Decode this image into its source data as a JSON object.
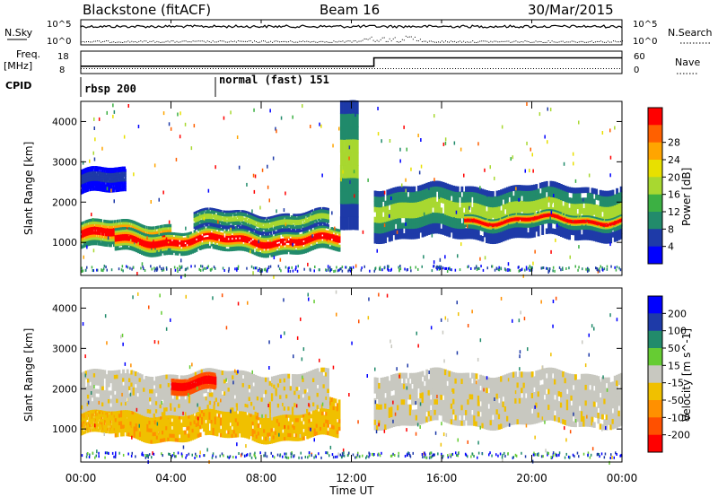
{
  "header": {
    "site": "Blackstone (fitACF)",
    "beam": "Beam 16",
    "date": "30/Mar/2015"
  },
  "left_labels": {
    "nsky": "N.Sky",
    "freq_line1": "Freq.",
    "freq_line2": "[MHz]",
    "cpid": "CPID"
  },
  "right_labels": {
    "nsearch": "N.Search",
    "nave": "Nave"
  },
  "colors": {
    "noise_line": "#000000",
    "plot_border": "#000000"
  },
  "chart_data": [
    {
      "type": "line",
      "title": "N.Sky / N.Search",
      "ylabel_left": "N.Sky",
      "ylabel_right": "N.Search",
      "yticks_left": [
        "10^5",
        "10^0"
      ],
      "yticks_right": [
        "10^5",
        "10^0"
      ],
      "xlim": [
        "00:00",
        "24:00"
      ]
    },
    {
      "type": "line",
      "title": "Frequency / Nave",
      "ylabel_left": "Freq. [MHz]",
      "ylabel_right": "Nave",
      "yticks_left": [
        "18",
        "8"
      ],
      "yticks_right": [
        "60",
        "0"
      ],
      "freq_mhz": [
        {
          "t": 0.0,
          "v": 11.3
        },
        {
          "t": 13.0,
          "v": 11.3
        },
        {
          "t": 13.0,
          "v": 15.0
        },
        {
          "t": 24.0,
          "v": 15.0
        }
      ],
      "nave_level": 0.2
    },
    {
      "type": "table",
      "title": "CPID",
      "segments": [
        {
          "start_hour": 0,
          "label": "rbsp 200"
        },
        {
          "start_hour": 6,
          "label": "normal (fast) 151"
        }
      ]
    },
    {
      "type": "heatmap",
      "title": "Power",
      "ylabel": "Slant Range [km]",
      "yticks": [
        1000,
        2000,
        3000,
        4000
      ],
      "ylim": [
        180,
        4500
      ],
      "colorbar_label": "Power [dB]",
      "colorbar_ticks": [
        4,
        8,
        12,
        16,
        20,
        24,
        28
      ],
      "colorbar_colors": [
        "#0000ff",
        "#1e3aa8",
        "#228b6b",
        "#3cb043",
        "#a8d830",
        "#e8e000",
        "#ffa500",
        "#ff6000",
        "#ff0000"
      ],
      "bands": [
        {
          "t0": 0.0,
          "t1": 4.0,
          "r0": 850,
          "r1": 1500,
          "intensity": "high"
        },
        {
          "t0": 1.5,
          "t1": 11.5,
          "r0": 750,
          "r1": 1300,
          "intensity": "high"
        },
        {
          "t0": 5.0,
          "t1": 11.0,
          "r0": 1300,
          "r1": 1750,
          "intensity": "medium"
        },
        {
          "t0": 0.0,
          "t1": 2.0,
          "r0": 2200,
          "r1": 2800,
          "intensity": "low"
        },
        {
          "t0": 11.5,
          "t1": 12.3,
          "r0": 1300,
          "r1": 4500,
          "intensity": "medium"
        },
        {
          "t0": 13.0,
          "t1": 24.0,
          "r0": 1100,
          "r1": 2400,
          "intensity": "medium"
        },
        {
          "t0": 17.0,
          "t1": 24.0,
          "r0": 1400,
          "r1": 1700,
          "intensity": "high"
        }
      ]
    },
    {
      "type": "heatmap",
      "title": "Velocity",
      "ylabel": "Slant Range [km]",
      "yticks": [
        1000,
        2000,
        3000,
        4000
      ],
      "ylim": [
        180,
        4500
      ],
      "colorbar_label": "Velocity [m s^-1]",
      "colorbar_ticks": [
        200,
        100,
        50,
        15,
        -15,
        -50,
        -100,
        -200
      ],
      "colorbar_colors": [
        "#0000ff",
        "#1e3aa8",
        "#228b6b",
        "#66cc33",
        "#c8c8c0",
        "#f0c000",
        "#ff9000",
        "#ff5000",
        "#ff0000"
      ],
      "bands": [
        {
          "t0": 0.0,
          "t1": 4.0,
          "r0": 850,
          "r1": 1500,
          "v": -50
        },
        {
          "t0": 1.5,
          "t1": 11.5,
          "r0": 750,
          "r1": 1700,
          "v": -50
        },
        {
          "t0": 0.0,
          "t1": 11.0,
          "r0": 1400,
          "r1": 2400,
          "v": 0
        },
        {
          "t0": 4.0,
          "t1": 6.0,
          "r0": 1900,
          "r1": 2300,
          "v": -200
        },
        {
          "t0": 13.0,
          "t1": 24.0,
          "r0": 1100,
          "r1": 2400,
          "v": 0
        }
      ],
      "xlabel": "Time UT",
      "xticks": [
        "00:00",
        "04:00",
        "08:00",
        "12:00",
        "16:00",
        "20:00",
        "00:00"
      ]
    }
  ]
}
